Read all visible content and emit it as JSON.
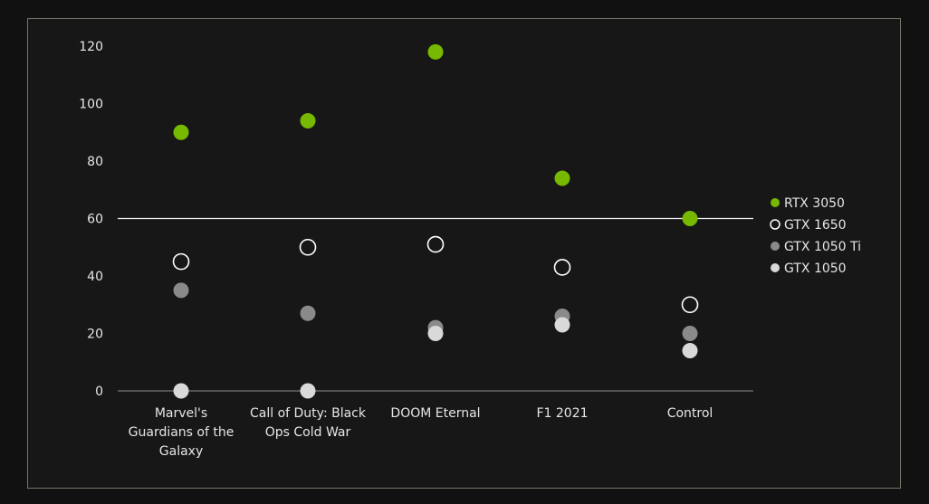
{
  "chart_data": {
    "type": "scatter",
    "categories": [
      "Marvel's Guardians of the Galaxy",
      "Call of Duty: Black Ops Cold War",
      "DOOM Eternal",
      "F1 2021",
      "Control"
    ],
    "category_lines": [
      [
        "Marvel's",
        "Guardians of the",
        "Galaxy"
      ],
      [
        "Call of Duty: Black",
        "Ops Cold War"
      ],
      [
        "DOOM Eternal"
      ],
      [
        "F1 2021"
      ],
      [
        "Control"
      ]
    ],
    "series": [
      {
        "name": "RTX 3050",
        "values": [
          90,
          94,
          118,
          74,
          60
        ],
        "color": "#76b900",
        "style": "filled"
      },
      {
        "name": "GTX 1650",
        "values": [
          45,
          50,
          51,
          43,
          30
        ],
        "color": "#ffffff",
        "style": "hollow"
      },
      {
        "name": "GTX 1050 Ti",
        "values": [
          35,
          27,
          22,
          26,
          20
        ],
        "color": "#8a8a8a",
        "style": "filled"
      },
      {
        "name": "GTX 1050",
        "values": [
          0,
          0,
          20,
          23,
          14
        ],
        "color": "#d9d9d9",
        "style": "filled"
      }
    ],
    "y_ticks": [
      0,
      20,
      40,
      60,
      80,
      100,
      120
    ],
    "ylim": [
      0,
      120
    ],
    "reference_line": 60,
    "grid": false,
    "legend_position": "right",
    "title": "",
    "xlabel": "",
    "ylabel": ""
  }
}
